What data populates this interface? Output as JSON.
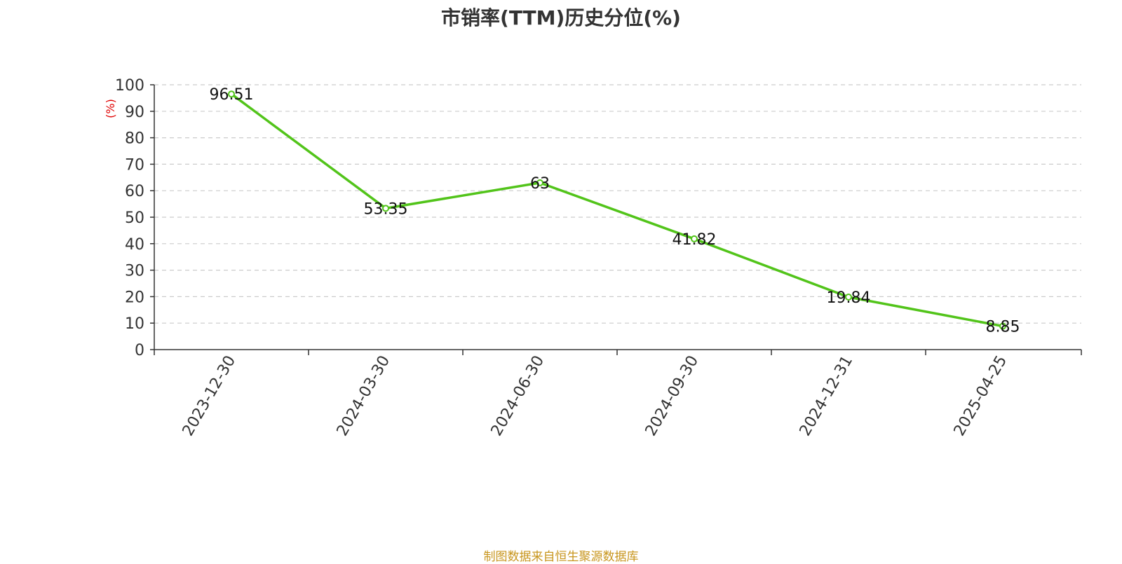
{
  "title": "市销率(TTM)历史分位(%)",
  "source": "制图数据来自恒生聚源数据库",
  "colors": {
    "line": "#52c41a",
    "unit": "#e00000",
    "grid": "#cccccc",
    "axis": "#333333"
  },
  "chart_data": {
    "type": "line",
    "title": "市销率(TTM)历史分位(%)",
    "ylabel": "(%)",
    "xlabel": "",
    "categories": [
      "2023-12-30",
      "2024-03-30",
      "2024-06-30",
      "2024-09-30",
      "2024-12-31",
      "2025-04-25"
    ],
    "series": [
      {
        "values": [
          96.51,
          53.35,
          63,
          41.82,
          19.84,
          8.85
        ]
      }
    ],
    "data_labels": [
      "96.51",
      "53.35",
      "63",
      "41.82",
      "19.84",
      "8.85"
    ],
    "ylim": [
      0,
      100
    ],
    "yticks": [
      0,
      10,
      20,
      30,
      40,
      50,
      60,
      70,
      80,
      90,
      100
    ],
    "grid": true,
    "legend": "none"
  }
}
